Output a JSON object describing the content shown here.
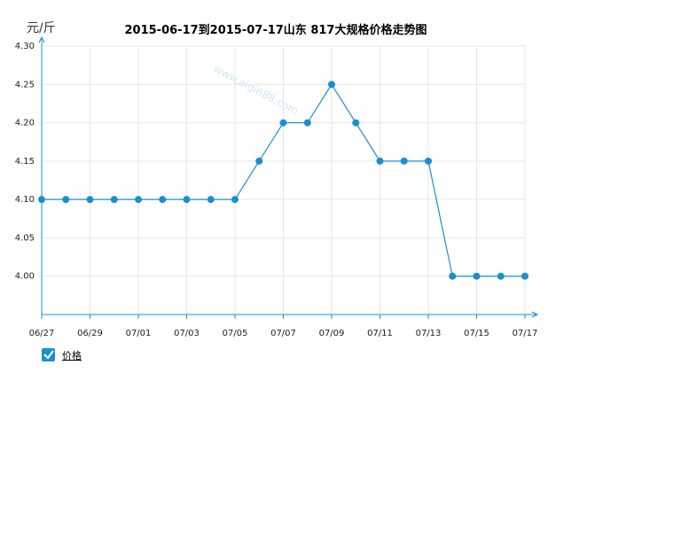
{
  "chart_data": {
    "type": "line",
    "title": "2015-06-17到2015-07-17山东  817大规格价格走势图",
    "ylabel": "元/斤",
    "xlabel": "",
    "ylim": [
      3.95,
      4.3
    ],
    "yticks": [
      "4.00",
      "4.05",
      "4.10",
      "4.15",
      "4.20",
      "4.25",
      "4.30"
    ],
    "x": [
      "06/27",
      "06/28",
      "06/29",
      "06/30",
      "07/01",
      "07/02",
      "07/03",
      "07/04",
      "07/05",
      "07/06",
      "07/07",
      "07/08",
      "07/09",
      "07/10",
      "07/11",
      "07/12",
      "07/13",
      "07/14",
      "07/15",
      "07/16",
      "07/17"
    ],
    "xticks": [
      "06/27",
      "06/29",
      "07/01",
      "07/03",
      "07/05",
      "07/07",
      "07/09",
      "07/11",
      "07/13",
      "07/15",
      "07/17"
    ],
    "series": [
      {
        "name": "价格",
        "color": "#1a8fcf",
        "values": [
          4.1,
          4.1,
          4.1,
          4.1,
          4.1,
          4.1,
          4.1,
          4.1,
          4.1,
          4.15,
          4.2,
          4.2,
          4.25,
          4.2,
          4.15,
          4.15,
          4.15,
          4.0,
          4.0,
          4.0,
          4.0
        ]
      }
    ],
    "grid": true,
    "legend": "bottom-left"
  }
}
